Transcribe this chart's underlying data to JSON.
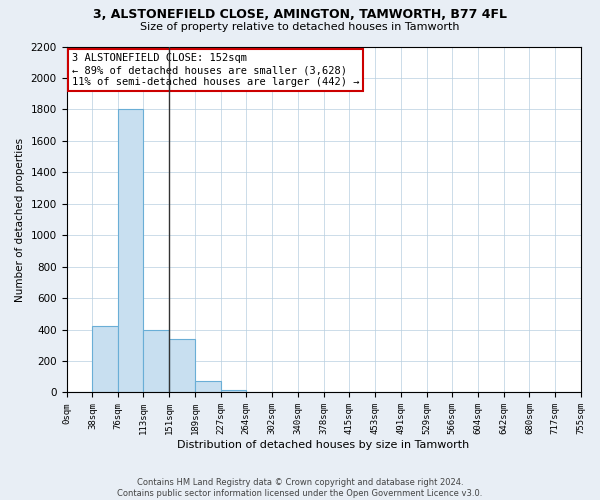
{
  "title": "3, ALSTONEFIELD CLOSE, AMINGTON, TAMWORTH, B77 4FL",
  "subtitle": "Size of property relative to detached houses in Tamworth",
  "xlabel": "Distribution of detached houses by size in Tamworth",
  "ylabel": "Number of detached properties",
  "bar_color": "#c8dff0",
  "bar_edge_color": "#6aaed6",
  "vline_x": 151,
  "vline_color": "#333333",
  "bin_edges": [
    0,
    38,
    76,
    113,
    151,
    189,
    227,
    264,
    302,
    340,
    378,
    415,
    453,
    491,
    529,
    566,
    604,
    642,
    680,
    717,
    755
  ],
  "bin_labels": [
    "0sqm",
    "38sqm",
    "76sqm",
    "113sqm",
    "151sqm",
    "189sqm",
    "227sqm",
    "264sqm",
    "302sqm",
    "340sqm",
    "378sqm",
    "415sqm",
    "453sqm",
    "491sqm",
    "529sqm",
    "566sqm",
    "604sqm",
    "642sqm",
    "680sqm",
    "717sqm",
    "755sqm"
  ],
  "bar_heights": [
    3,
    420,
    1800,
    400,
    340,
    75,
    18,
    0,
    0,
    0,
    0,
    0,
    0,
    0,
    0,
    0,
    0,
    0,
    0,
    0
  ],
  "ylim": [
    0,
    2200
  ],
  "yticks": [
    0,
    200,
    400,
    600,
    800,
    1000,
    1200,
    1400,
    1600,
    1800,
    2000,
    2200
  ],
  "annotation_title": "3 ALSTONEFIELD CLOSE: 152sqm",
  "annotation_line1": "← 89% of detached houses are smaller (3,628)",
  "annotation_line2": "11% of semi-detached houses are larger (442) →",
  "annotation_box_color": "white",
  "annotation_box_edge_color": "#cc0000",
  "footer_line1": "Contains HM Land Registry data © Crown copyright and database right 2024.",
  "footer_line2": "Contains public sector information licensed under the Open Government Licence v3.0.",
  "background_color": "#e8eef5",
  "plot_background_color": "white",
  "grid_color": "#b8cfe0"
}
